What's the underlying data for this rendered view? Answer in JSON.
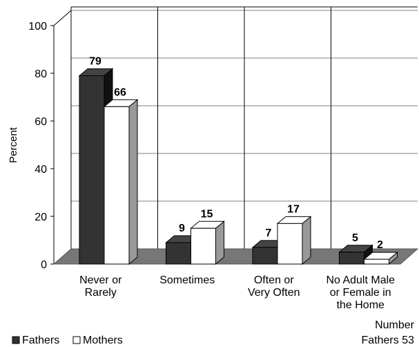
{
  "chart_data": {
    "type": "bar3d",
    "categories": [
      "Never or\nRarely",
      "Sometimes",
      "Often or\nVery Often",
      "No Adult Male\nor Female in\nthe Home"
    ],
    "series": [
      {
        "name": "Fathers",
        "color": "#333333",
        "values": [
          79,
          9,
          7,
          5
        ]
      },
      {
        "name": "Mothers",
        "color": "#ffffff",
        "values": [
          66,
          15,
          17,
          2
        ]
      }
    ],
    "ylabel": "Percent",
    "ylim": [
      0,
      100
    ],
    "yticks": [
      0,
      20,
      40,
      60,
      80,
      100
    ],
    "annotation": "Number\nFathers 53",
    "legend": "bottom-left"
  }
}
